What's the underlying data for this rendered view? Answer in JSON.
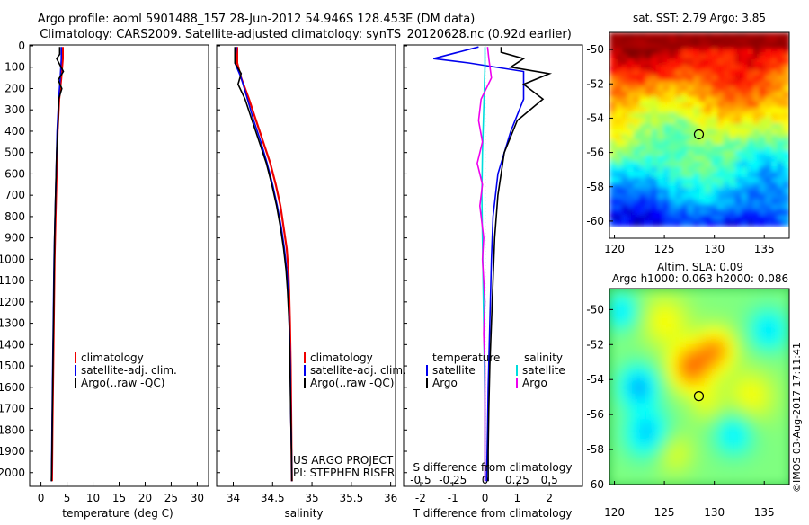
{
  "header": {
    "line1": "Argo profile: aoml 5901488_157 28-Jun-2012 54.946S 128.453E (DM data)",
    "line2": "Climatology: CARS2009. Satellite-adjusted climatology: synTS_20120628.nc (0.92d earlier)"
  },
  "colors": {
    "climatology": "#ee0000",
    "satellite": "#0000ee",
    "argo": "#000000",
    "salinity_satellite": "#00dddd",
    "salinity_argo": "#ee00ee"
  },
  "legend_profiles": [
    "climatology",
    "satellite-adj. clim.",
    "Argo(..raw -QC)"
  ],
  "legend_diff": {
    "temperature_title": "temperature",
    "salinity_title": "salinity",
    "satellite": "satellite",
    "argo": "Argo"
  },
  "credits": {
    "project": "US ARGO PROJECT",
    "pi": "PI: STEPHEN RISER",
    "watermark": "©IMOS 03-Aug-2017 17:11:41"
  },
  "chart_data": [
    {
      "type": "line",
      "title": "",
      "xlabel": "temperature (deg C)",
      "ylabel": "",
      "xlim": [
        -2,
        32
      ],
      "ylim": [
        2060,
        0
      ],
      "xticks": [
        0,
        5,
        10,
        15,
        20,
        25,
        30
      ],
      "yticks": [
        0,
        100,
        200,
        300,
        400,
        500,
        600,
        700,
        800,
        900,
        1000,
        1100,
        1200,
        1300,
        1400,
        1500,
        1600,
        1700,
        1800,
        1900,
        2000
      ],
      "series": [
        {
          "name": "climatology",
          "points": [
            [
              4.2,
              5
            ],
            [
              4.2,
              60
            ],
            [
              3.9,
              150
            ],
            [
              3.5,
              250
            ],
            [
              3.2,
              400
            ],
            [
              3.0,
              600
            ],
            [
              2.8,
              800
            ],
            [
              2.6,
              1000
            ],
            [
              2.5,
              1200
            ],
            [
              2.4,
              1400
            ],
            [
              2.3,
              1600
            ],
            [
              2.2,
              1800
            ],
            [
              2.1,
              2040
            ]
          ]
        },
        {
          "name": "satellite-adj. clim.",
          "points": [
            [
              3.9,
              5
            ],
            [
              3.9,
              60
            ],
            [
              3.7,
              150
            ],
            [
              3.4,
              250
            ],
            [
              3.1,
              400
            ],
            [
              2.9,
              600
            ],
            [
              2.7,
              800
            ],
            [
              2.5,
              1000
            ],
            [
              2.4,
              1200
            ],
            [
              2.3,
              1400
            ],
            [
              2.2,
              1600
            ],
            [
              2.1,
              1800
            ],
            [
              2.0,
              2040
            ]
          ]
        },
        {
          "name": "Argo(..raw -QC)",
          "points": [
            [
              3.6,
              5
            ],
            [
              3.6,
              40
            ],
            [
              3.0,
              60
            ],
            [
              4.3,
              120
            ],
            [
              3.3,
              160
            ],
            [
              4.0,
              200
            ],
            [
              3.4,
              250
            ],
            [
              3.3,
              350
            ],
            [
              3.0,
              500
            ],
            [
              2.8,
              700
            ],
            [
              2.6,
              900
            ],
            [
              2.5,
              1100
            ],
            [
              2.4,
              1300
            ],
            [
              2.3,
              1500
            ],
            [
              2.2,
              1700
            ],
            [
              2.1,
              1900
            ],
            [
              2.0,
              2040
            ]
          ]
        }
      ]
    },
    {
      "type": "line",
      "title": "",
      "xlabel": "salinity",
      "ylabel": "",
      "xlim": [
        33.8,
        36.05
      ],
      "ylim": [
        2060,
        0
      ],
      "xticks": [
        34,
        34.5,
        35,
        35.5,
        36
      ],
      "series": [
        {
          "name": "climatology",
          "points": [
            [
              34.05,
              5
            ],
            [
              34.05,
              80
            ],
            [
              34.1,
              150
            ],
            [
              34.2,
              250
            ],
            [
              34.29,
              350
            ],
            [
              34.38,
              450
            ],
            [
              34.47,
              550
            ],
            [
              34.54,
              650
            ],
            [
              34.6,
              750
            ],
            [
              34.64,
              850
            ],
            [
              34.68,
              950
            ],
            [
              34.7,
              1050
            ],
            [
              34.71,
              1150
            ],
            [
              34.72,
              1300
            ],
            [
              34.73,
              1500
            ],
            [
              34.735,
              1700
            ],
            [
              34.74,
              1900
            ],
            [
              34.745,
              2040
            ]
          ]
        },
        {
          "name": "satellite-adj. clim.",
          "points": [
            [
              34.04,
              5
            ],
            [
              34.02,
              80
            ],
            [
              34.1,
              150
            ],
            [
              34.18,
              250
            ],
            [
              34.26,
              350
            ],
            [
              34.35,
              450
            ],
            [
              34.43,
              550
            ],
            [
              34.5,
              650
            ],
            [
              34.56,
              750
            ],
            [
              34.61,
              850
            ],
            [
              34.65,
              950
            ],
            [
              34.68,
              1050
            ],
            [
              34.7,
              1150
            ],
            [
              34.71,
              1300
            ],
            [
              34.725,
              1500
            ],
            [
              34.73,
              1700
            ],
            [
              34.74,
              1900
            ],
            [
              34.745,
              2040
            ]
          ]
        },
        {
          "name": "Argo(..raw -QC)",
          "points": [
            [
              34.02,
              5
            ],
            [
              34.02,
              80
            ],
            [
              34.1,
              130
            ],
            [
              34.06,
              180
            ],
            [
              34.15,
              250
            ],
            [
              34.24,
              350
            ],
            [
              34.33,
              450
            ],
            [
              34.42,
              550
            ],
            [
              34.49,
              650
            ],
            [
              34.55,
              750
            ],
            [
              34.6,
              850
            ],
            [
              34.64,
              950
            ],
            [
              34.67,
              1050
            ],
            [
              34.69,
              1150
            ],
            [
              34.71,
              1300
            ],
            [
              34.72,
              1500
            ],
            [
              34.73,
              1700
            ],
            [
              34.74,
              1900
            ],
            [
              34.745,
              2040
            ]
          ]
        }
      ]
    },
    {
      "type": "line",
      "title": "",
      "xlabel": "T difference from climatology",
      "x2label": "S difference from climatology",
      "xlim": [
        -2.5,
        3
      ],
      "x2lim": [
        -0.625,
        0.75
      ],
      "ylim": [
        2060,
        0
      ],
      "xticks": [
        -2,
        -1,
        0,
        1,
        2
      ],
      "x2ticks": [
        -0.5,
        -0.25,
        0,
        0.25,
        0.5
      ],
      "series": [
        {
          "name": "temperature satellite",
          "axis": "T",
          "points": [
            [
              -0.2,
              5
            ],
            [
              -1.6,
              60
            ],
            [
              -0.5,
              80
            ],
            [
              1.2,
              120
            ],
            [
              1.2,
              250
            ],
            [
              0.8,
              400
            ],
            [
              0.4,
              600
            ],
            [
              0.25,
              800
            ],
            [
              0.2,
              1000
            ],
            [
              0.15,
              1300
            ],
            [
              0.1,
              1600
            ],
            [
              0.08,
              1800
            ],
            [
              0.05,
              2040
            ]
          ]
        },
        {
          "name": "temperature Argo",
          "axis": "T",
          "points": [
            [
              0.5,
              5
            ],
            [
              0.5,
              30
            ],
            [
              1.2,
              60
            ],
            [
              0.8,
              100
            ],
            [
              2.0,
              130
            ],
            [
              1.2,
              180
            ],
            [
              1.8,
              250
            ],
            [
              1.0,
              350
            ],
            [
              0.6,
              500
            ],
            [
              0.4,
              700
            ],
            [
              0.3,
              900
            ],
            [
              0.25,
              1100
            ],
            [
              0.2,
              1300
            ],
            [
              0.15,
              1500
            ],
            [
              0.12,
              1700
            ],
            [
              0.1,
              1900
            ],
            [
              0.1,
              2040
            ]
          ]
        },
        {
          "name": "salinity satellite",
          "axis": "S",
          "points": [
            [
              0.0,
              5
            ],
            [
              0.0,
              100
            ],
            [
              -0.01,
              300
            ],
            [
              -0.02,
              500
            ],
            [
              -0.025,
              700
            ],
            [
              -0.02,
              900
            ],
            [
              -0.015,
              1100
            ],
            [
              -0.01,
              1300
            ],
            [
              -0.005,
              1500
            ],
            [
              0.0,
              1700
            ],
            [
              0.0,
              2040
            ]
          ]
        },
        {
          "name": "salinity Argo",
          "axis": "S",
          "points": [
            [
              0.02,
              5
            ],
            [
              0.03,
              60
            ],
            [
              0.05,
              150
            ],
            [
              -0.03,
              250
            ],
            [
              -0.05,
              350
            ],
            [
              -0.02,
              450
            ],
            [
              -0.06,
              550
            ],
            [
              -0.02,
              650
            ],
            [
              -0.04,
              750
            ],
            [
              -0.01,
              900
            ],
            [
              -0.02,
              1000
            ],
            [
              0.0,
              1200
            ],
            [
              -0.01,
              1350
            ],
            [
              0.0,
              1500
            ],
            [
              0.0,
              2040
            ]
          ]
        }
      ]
    },
    {
      "type": "heatmap",
      "title": "sat. SST: 2.79 Argo: 3.85",
      "xlim": [
        119.5,
        137.5
      ],
      "ylim": [
        -61,
        -49
      ],
      "xticks": [
        120,
        125,
        130,
        135
      ],
      "yticks": [
        -50,
        -52,
        -54,
        -56,
        -58,
        -60
      ],
      "marker": {
        "lon": 128.453,
        "lat": -54.946
      }
    },
    {
      "type": "heatmap",
      "title": "Altim. SLA: 0.09",
      "subtitle": "Argo h1000: 0.063 h2000: 0.086",
      "xlim": [
        119.5,
        137.5
      ],
      "ylim": [
        -60,
        -48.8
      ],
      "xticks": [
        120,
        125,
        130,
        135
      ],
      "yticks": [
        -50,
        -52,
        -54,
        -56,
        -58,
        -60
      ],
      "marker": {
        "lon": 128.453,
        "lat": -54.946
      }
    }
  ]
}
